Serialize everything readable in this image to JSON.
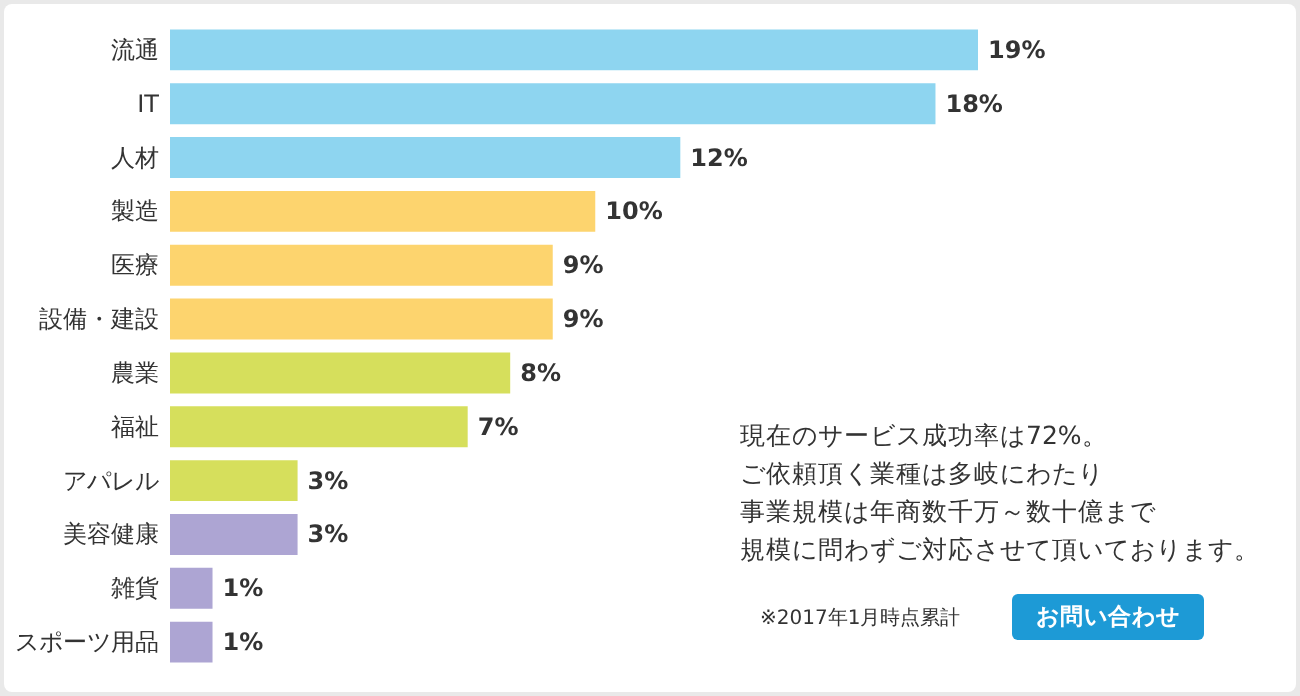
{
  "chart_data": {
    "type": "bar",
    "orientation": "horizontal",
    "categories": [
      "流通",
      "IT",
      "人材",
      "製造",
      "医療",
      "設備・建設",
      "農業",
      "福祉",
      "アパレル",
      "美容健康",
      "雑貨",
      "スポーツ用品"
    ],
    "values": [
      19,
      18,
      12,
      10,
      9,
      9,
      8,
      7,
      3,
      3,
      1,
      1
    ],
    "colors": [
      "#8ed5f0",
      "#8ed5f0",
      "#8ed5f0",
      "#fdd46e",
      "#fdd46e",
      "#fdd46e",
      "#d6df5c",
      "#d6df5c",
      "#d6df5c",
      "#ada5d3",
      "#ada5d3",
      "#ada5d3"
    ],
    "value_labels": [
      "19%",
      "18%",
      "12%",
      "10%",
      "9%",
      "9%",
      "8%",
      "7%",
      "3%",
      "3%",
      "1%",
      "1%"
    ],
    "annotations": [
      "現在のサービス成功率は72%。",
      "ご依頼頂く業種は多岐にわたり",
      "事業規模は年商数千万～数十億まで",
      "規模に問わずご対応させて頂いております。",
      "※2017年1月時点累計",
      "お問い合わせ"
    ]
  }
}
